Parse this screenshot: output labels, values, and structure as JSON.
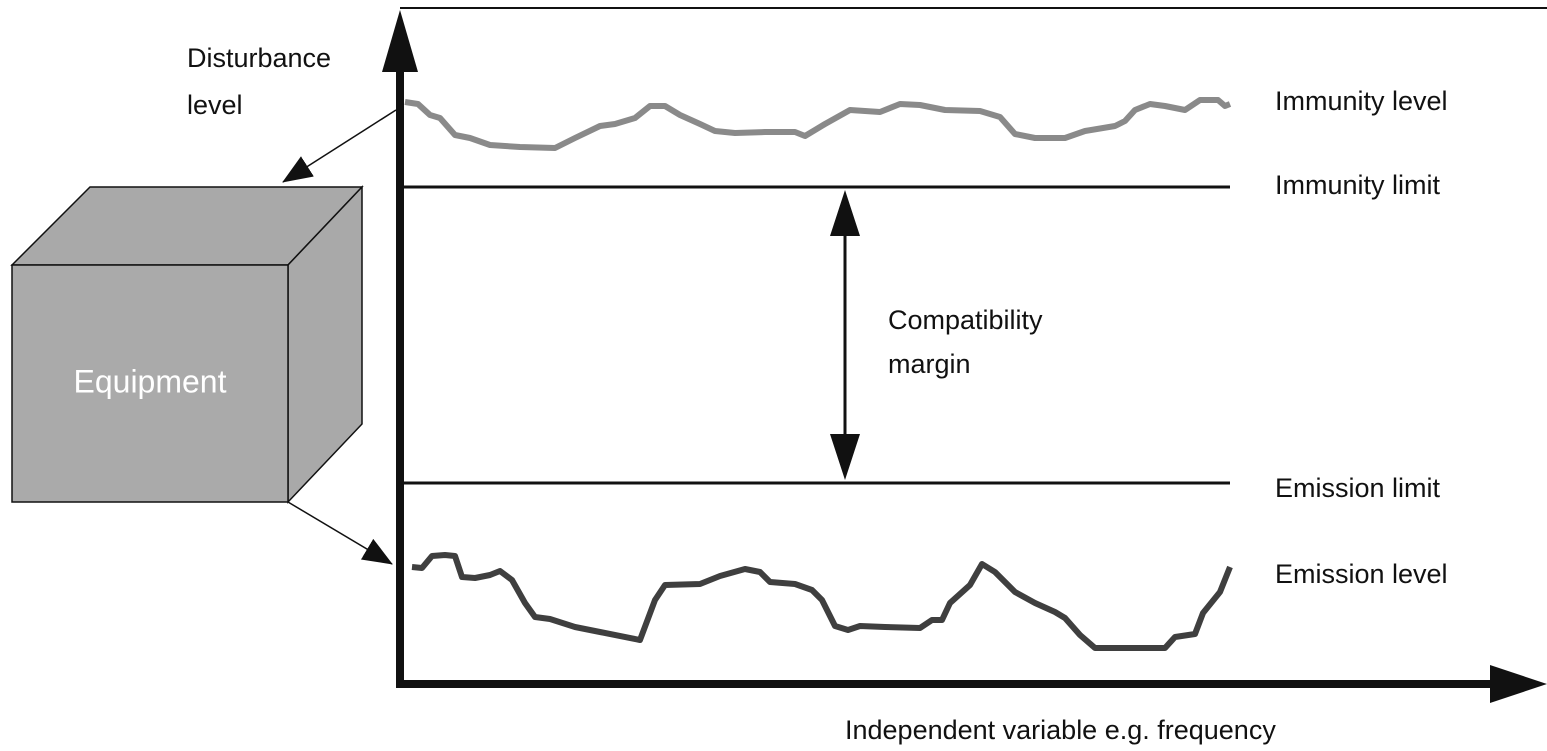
{
  "y_axis_label": [
    "Disturbance",
    "level"
  ],
  "x_axis_label": "Independent variable e.g. frequency",
  "equipment": "Equipment",
  "curves": {
    "immunity_level": "Immunity level",
    "immunity_limit": "Immunity limit",
    "emission_limit": "Emission limit",
    "emission_level": "Emission level"
  },
  "margin_label": [
    "Compatibility",
    "margin"
  ]
}
